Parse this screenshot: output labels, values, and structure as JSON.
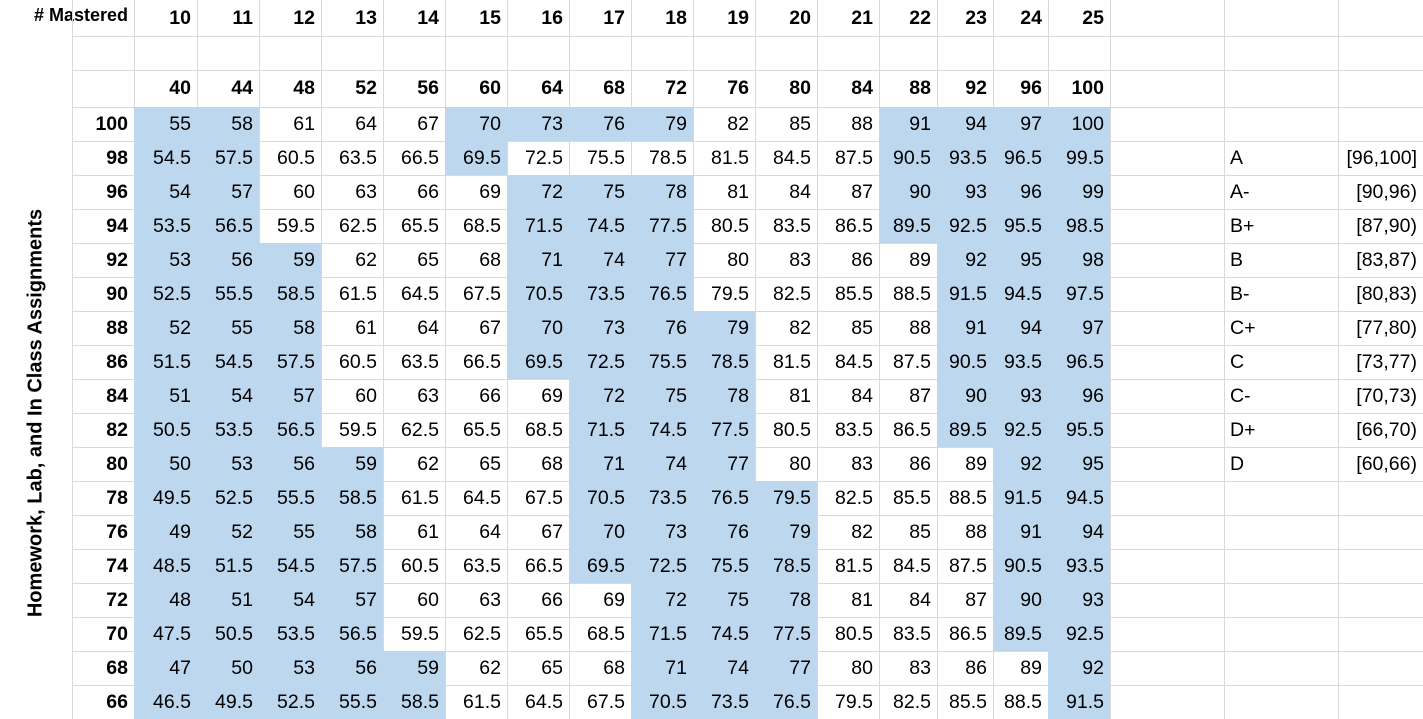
{
  "header": {
    "mastered_label": "# Mastered",
    "vertical_label": "Homework, Lab, and In Class Assignments"
  },
  "columns": {
    "mastered": [
      "10",
      "11",
      "12",
      "13",
      "14",
      "15",
      "16",
      "17",
      "18",
      "19",
      "20",
      "21",
      "22",
      "23",
      "24",
      "25"
    ],
    "scores": [
      "40",
      "44",
      "48",
      "52",
      "56",
      "60",
      "64",
      "68",
      "72",
      "76",
      "80",
      "84",
      "88",
      "92",
      "96",
      "100"
    ]
  },
  "rows": [
    {
      "label": "100",
      "values": [
        "55",
        "58",
        "61",
        "64",
        "67",
        "70",
        "73",
        "76",
        "79",
        "82",
        "85",
        "88",
        "91",
        "94",
        "97",
        "100"
      ]
    },
    {
      "label": "98",
      "values": [
        "54.5",
        "57.5",
        "60.5",
        "63.5",
        "66.5",
        "69.5",
        "72.5",
        "75.5",
        "78.5",
        "81.5",
        "84.5",
        "87.5",
        "90.5",
        "93.5",
        "96.5",
        "99.5"
      ]
    },
    {
      "label": "96",
      "values": [
        "54",
        "57",
        "60",
        "63",
        "66",
        "69",
        "72",
        "75",
        "78",
        "81",
        "84",
        "87",
        "90",
        "93",
        "96",
        "99"
      ]
    },
    {
      "label": "94",
      "values": [
        "53.5",
        "56.5",
        "59.5",
        "62.5",
        "65.5",
        "68.5",
        "71.5",
        "74.5",
        "77.5",
        "80.5",
        "83.5",
        "86.5",
        "89.5",
        "92.5",
        "95.5",
        "98.5"
      ]
    },
    {
      "label": "92",
      "values": [
        "53",
        "56",
        "59",
        "62",
        "65",
        "68",
        "71",
        "74",
        "77",
        "80",
        "83",
        "86",
        "89",
        "92",
        "95",
        "98"
      ]
    },
    {
      "label": "90",
      "values": [
        "52.5",
        "55.5",
        "58.5",
        "61.5",
        "64.5",
        "67.5",
        "70.5",
        "73.5",
        "76.5",
        "79.5",
        "82.5",
        "85.5",
        "88.5",
        "91.5",
        "94.5",
        "97.5"
      ]
    },
    {
      "label": "88",
      "values": [
        "52",
        "55",
        "58",
        "61",
        "64",
        "67",
        "70",
        "73",
        "76",
        "79",
        "82",
        "85",
        "88",
        "91",
        "94",
        "97"
      ]
    },
    {
      "label": "86",
      "values": [
        "51.5",
        "54.5",
        "57.5",
        "60.5",
        "63.5",
        "66.5",
        "69.5",
        "72.5",
        "75.5",
        "78.5",
        "81.5",
        "84.5",
        "87.5",
        "90.5",
        "93.5",
        "96.5"
      ]
    },
    {
      "label": "84",
      "values": [
        "51",
        "54",
        "57",
        "60",
        "63",
        "66",
        "69",
        "72",
        "75",
        "78",
        "81",
        "84",
        "87",
        "90",
        "93",
        "96"
      ]
    },
    {
      "label": "82",
      "values": [
        "50.5",
        "53.5",
        "56.5",
        "59.5",
        "62.5",
        "65.5",
        "68.5",
        "71.5",
        "74.5",
        "77.5",
        "80.5",
        "83.5",
        "86.5",
        "89.5",
        "92.5",
        "95.5"
      ]
    },
    {
      "label": "80",
      "values": [
        "50",
        "53",
        "56",
        "59",
        "62",
        "65",
        "68",
        "71",
        "74",
        "77",
        "80",
        "83",
        "86",
        "89",
        "92",
        "95"
      ]
    },
    {
      "label": "78",
      "values": [
        "49.5",
        "52.5",
        "55.5",
        "58.5",
        "61.5",
        "64.5",
        "67.5",
        "70.5",
        "73.5",
        "76.5",
        "79.5",
        "82.5",
        "85.5",
        "88.5",
        "91.5",
        "94.5"
      ]
    },
    {
      "label": "76",
      "values": [
        "49",
        "52",
        "55",
        "58",
        "61",
        "64",
        "67",
        "70",
        "73",
        "76",
        "79",
        "82",
        "85",
        "88",
        "91",
        "94"
      ]
    },
    {
      "label": "74",
      "values": [
        "48.5",
        "51.5",
        "54.5",
        "57.5",
        "60.5",
        "63.5",
        "66.5",
        "69.5",
        "72.5",
        "75.5",
        "78.5",
        "81.5",
        "84.5",
        "87.5",
        "90.5",
        "93.5"
      ]
    },
    {
      "label": "72",
      "values": [
        "48",
        "51",
        "54",
        "57",
        "60",
        "63",
        "66",
        "69",
        "72",
        "75",
        "78",
        "81",
        "84",
        "87",
        "90",
        "93"
      ]
    },
    {
      "label": "70",
      "values": [
        "47.5",
        "50.5",
        "53.5",
        "56.5",
        "59.5",
        "62.5",
        "65.5",
        "68.5",
        "71.5",
        "74.5",
        "77.5",
        "80.5",
        "83.5",
        "86.5",
        "89.5",
        "92.5"
      ]
    },
    {
      "label": "68",
      "values": [
        "47",
        "50",
        "53",
        "56",
        "59",
        "62",
        "65",
        "68",
        "71",
        "74",
        "77",
        "80",
        "83",
        "86",
        "89",
        "92"
      ]
    },
    {
      "label": "66",
      "values": [
        "46.5",
        "49.5",
        "52.5",
        "55.5",
        "58.5",
        "61.5",
        "64.5",
        "67.5",
        "70.5",
        "73.5",
        "76.5",
        "79.5",
        "82.5",
        "85.5",
        "88.5",
        "91.5"
      ]
    }
  ],
  "grades": [
    {
      "letter": "A",
      "range": "[96,100]"
    },
    {
      "letter": "A-",
      "range": "[90,96)"
    },
    {
      "letter": "B+",
      "range": "[87,90)"
    },
    {
      "letter": "B",
      "range": "[83,87)"
    },
    {
      "letter": "B-",
      "range": "[80,83)"
    },
    {
      "letter": "C+",
      "range": "[77,80)"
    },
    {
      "letter": "C",
      "range": "[73,77)"
    },
    {
      "letter": "C-",
      "range": "[70,73)"
    },
    {
      "letter": "D+",
      "range": "[66,70)"
    },
    {
      "letter": "D",
      "range": "[60,66)"
    }
  ],
  "colors": {
    "highlight": "#bdd7ee",
    "gridline": "#d9d9d9"
  }
}
